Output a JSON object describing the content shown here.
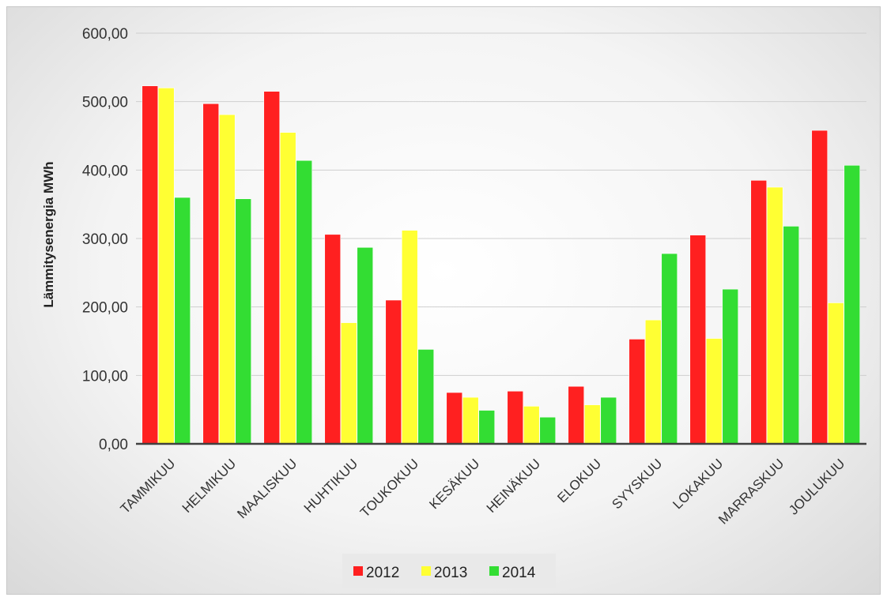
{
  "chart_data": {
    "type": "bar",
    "ylabel": "Lämmitysenergia MWh",
    "ylim": [
      0,
      600
    ],
    "yticks": [
      "0,00",
      "100,00",
      "200,00",
      "300,00",
      "400,00",
      "500,00",
      "600,00"
    ],
    "ytick_values": [
      0,
      100,
      200,
      300,
      400,
      500,
      600
    ],
    "categories": [
      "TAMMIKUU",
      "HELMIKUU",
      "MAALISKUU",
      "HUHTIKUU",
      "TOUKOKUU",
      "KESÄKUU",
      "HEINÄKUU",
      "ELOKUU",
      "SYYSKUU",
      "LOKAKUU",
      "MARRASKUU",
      "JOULUKUU"
    ],
    "series": [
      {
        "name": "2012",
        "color": "#ff2020",
        "values": [
          523,
          497,
          515,
          306,
          210,
          75,
          77,
          84,
          153,
          305,
          385,
          458
        ]
      },
      {
        "name": "2013",
        "color": "#ffff33",
        "values": [
          520,
          481,
          455,
          177,
          312,
          68,
          55,
          57,
          181,
          154,
          375,
          206
        ]
      },
      {
        "name": "2014",
        "color": "#33dd33",
        "values": [
          360,
          358,
          414,
          287,
          138,
          49,
          39,
          68,
          278,
          226,
          318,
          407
        ]
      }
    ],
    "grid": true,
    "legend_position": "bottom"
  }
}
